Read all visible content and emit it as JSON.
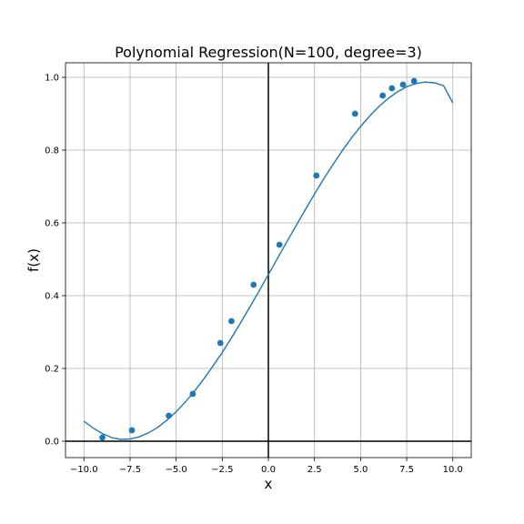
{
  "chart_data": {
    "type": "scatter",
    "title": "Polynomial Regression(N=100, degree=3)",
    "xlabel": "x",
    "ylabel": "f(x)",
    "xlim": [
      -11,
      11
    ],
    "ylim": [
      -0.045,
      1.04
    ],
    "grid": true,
    "colors": {
      "series": "#1f77b4",
      "zero_lines": "#000000",
      "grid": "#b0b0b0"
    },
    "x_ticks": [
      {
        "value": -10,
        "label": "−10.0"
      },
      {
        "value": -7.5,
        "label": "−7.5"
      },
      {
        "value": -5,
        "label": "−5.0"
      },
      {
        "value": -2.5,
        "label": "−2.5"
      },
      {
        "value": 0,
        "label": "0.0"
      },
      {
        "value": 2.5,
        "label": "2.5"
      },
      {
        "value": 5,
        "label": "5.0"
      },
      {
        "value": 7.5,
        "label": "7.5"
      },
      {
        "value": 10,
        "label": "10.0"
      }
    ],
    "y_ticks": [
      {
        "value": 0,
        "label": "0.0"
      },
      {
        "value": 0.2,
        "label": "0.2"
      },
      {
        "value": 0.4,
        "label": "0.4"
      },
      {
        "value": 0.6,
        "label": "0.6"
      },
      {
        "value": 0.8,
        "label": "0.8"
      },
      {
        "value": 1.0,
        "label": "1.0"
      }
    ],
    "points": {
      "x": [
        -9.0,
        -7.4,
        -5.4,
        -4.1,
        -2.6,
        -2.0,
        -0.8,
        0.6,
        2.6,
        4.7,
        6.2,
        6.7,
        7.3,
        7.9
      ],
      "y": [
        0.01,
        0.03,
        0.07,
        0.13,
        0.27,
        0.33,
        0.43,
        0.54,
        0.73,
        0.9,
        0.95,
        0.97,
        0.98,
        0.99
      ]
    },
    "fit_curve": {
      "x": [
        -10.0,
        -9.5,
        -9.0,
        -8.5,
        -8.0,
        -7.5,
        -7.0,
        -6.5,
        -6.0,
        -5.5,
        -5.0,
        -4.5,
        -4.0,
        -3.5,
        -3.0,
        -2.5,
        -2.0,
        -1.5,
        -1.0,
        -0.5,
        0.0,
        0.5,
        1.0,
        1.5,
        2.0,
        2.5,
        3.0,
        3.5,
        4.0,
        4.5,
        5.0,
        5.5,
        6.0,
        6.5,
        7.0,
        7.5,
        8.0,
        8.5,
        9.0,
        9.5,
        10.0
      ],
      "y": [
        0.055,
        0.036,
        0.021,
        0.01,
        0.005,
        0.006,
        0.012,
        0.023,
        0.038,
        0.058,
        0.081,
        0.108,
        0.138,
        0.171,
        0.207,
        0.244,
        0.284,
        0.326,
        0.369,
        0.413,
        0.458,
        0.503,
        0.548,
        0.592,
        0.636,
        0.679,
        0.721,
        0.76,
        0.798,
        0.833,
        0.865,
        0.894,
        0.92,
        0.942,
        0.96,
        0.974,
        0.983,
        0.987,
        0.985,
        0.977,
        0.93
      ]
    }
  }
}
